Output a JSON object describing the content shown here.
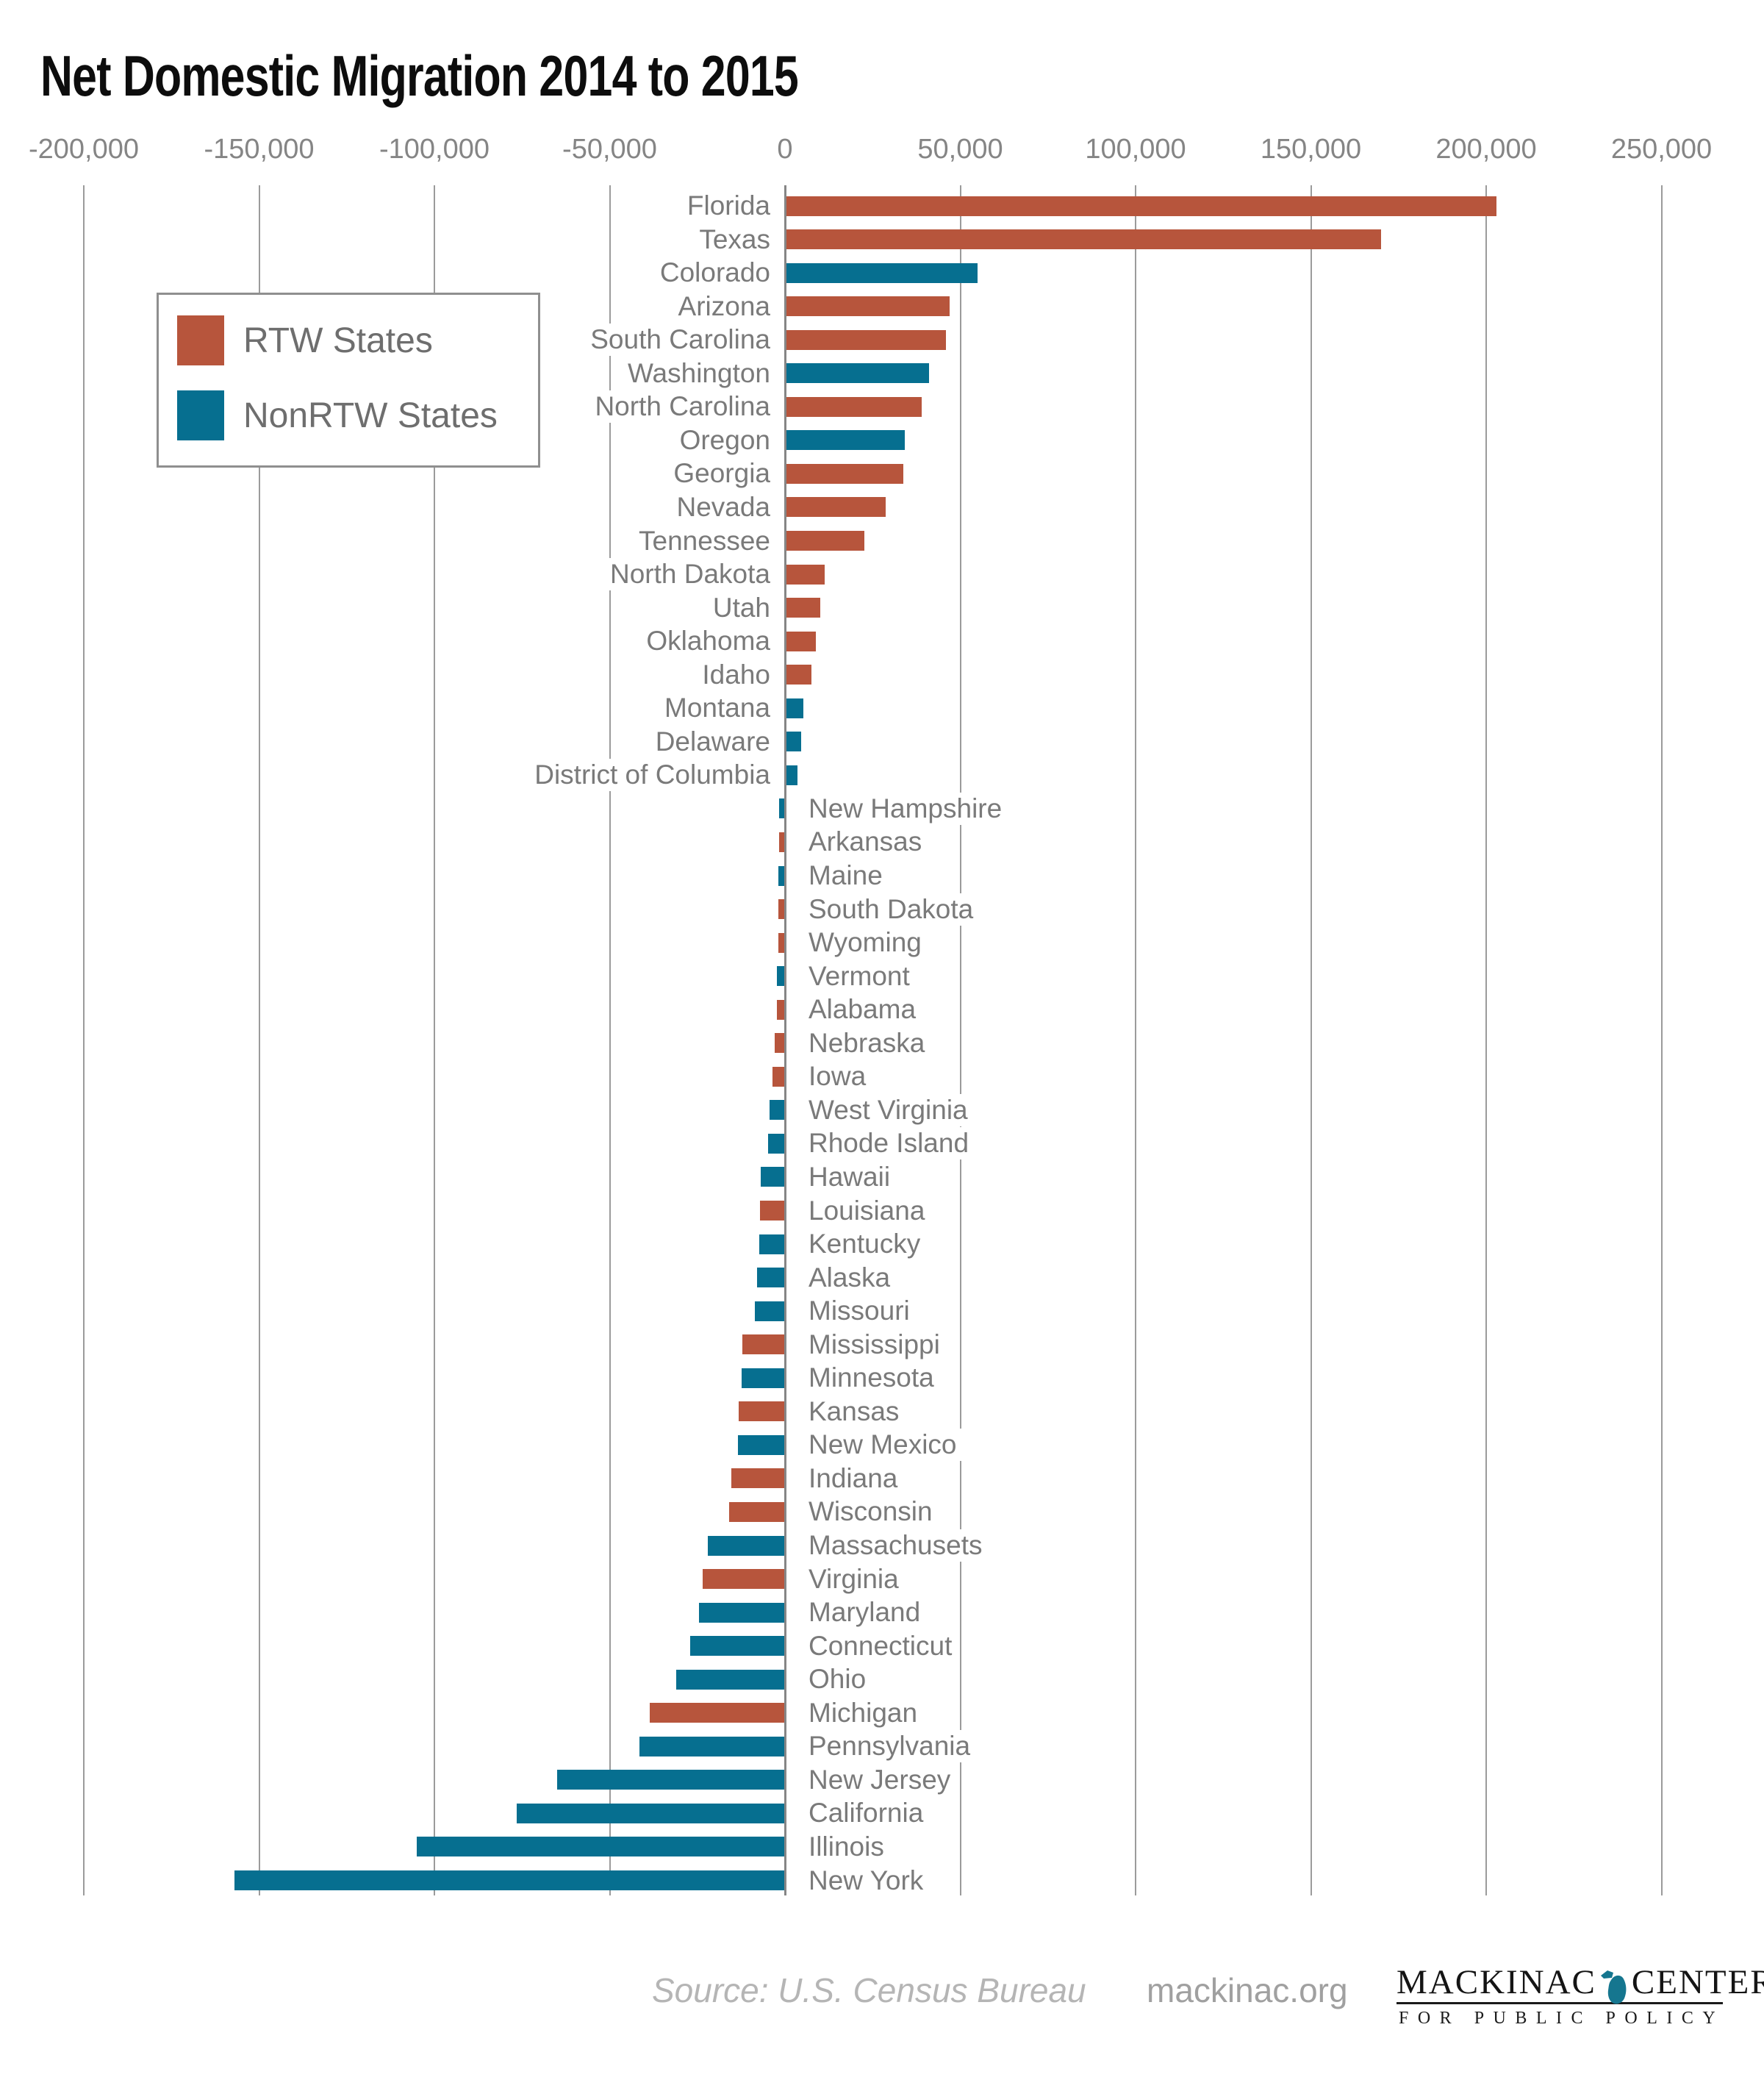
{
  "title": "Net Domestic Migration 2014 to 2015",
  "legend": {
    "items": [
      {
        "label": "RTW States",
        "color": "#b7553c"
      },
      {
        "label": "NonRTW States",
        "color": "#066f90"
      }
    ]
  },
  "axis": {
    "ticks": [
      {
        "label": "-200,000",
        "value": -200000
      },
      {
        "label": "-150,000",
        "value": -150000
      },
      {
        "label": "-100,000",
        "value": -100000
      },
      {
        "label": "-50,000",
        "value": -50000
      },
      {
        "label": "0",
        "value": 0
      },
      {
        "label": "50,000",
        "value": 50000
      },
      {
        "label": "100,000",
        "value": 100000
      },
      {
        "label": "150,000",
        "value": 150000
      },
      {
        "label": "200,000",
        "value": 200000
      },
      {
        "label": "250,000",
        "value": 250000
      }
    ]
  },
  "chart_data": {
    "type": "bar",
    "orientation": "horizontal",
    "title": "Net Domestic Migration 2014 to 2015",
    "xlim": [
      -200000,
      250000
    ],
    "grid": true,
    "legend_position": "upper-left",
    "series": [
      {
        "name": "RTW States",
        "color": "#b7553c"
      },
      {
        "name": "NonRTW States",
        "color": "#066f90"
      }
    ],
    "categories": [
      "Florida",
      "Texas",
      "Colorado",
      "Arizona",
      "South Carolina",
      "Washington",
      "North Carolina",
      "Oregon",
      "Georgia",
      "Nevada",
      "Tennessee",
      "North Dakota",
      "Utah",
      "Oklahoma",
      "Idaho",
      "Montana",
      "Delaware",
      "District of Columbia",
      "New Hampshire",
      "Arkansas",
      "Maine",
      "South Dakota",
      "Wyoming",
      "Vermont",
      "Alabama",
      "Nebraska",
      "Iowa",
      "West Virginia",
      "Rhode Island",
      "Hawaii",
      "Louisiana",
      "Kentucky",
      "Alaska",
      "Missouri",
      "Mississippi",
      "Minnesota",
      "Kansas",
      "New Mexico",
      "Indiana",
      "Wisconsin",
      "Massachusets",
      "Virginia",
      "Maryland",
      "Connecticut",
      "Ohio",
      "Michigan",
      "Pennsylvania",
      "New Jersey",
      "California",
      "Illinois",
      "New York"
    ],
    "values": [
      203000,
      170000,
      55000,
      47000,
      46000,
      41000,
      39000,
      34200,
      33800,
      28800,
      22700,
      11400,
      10000,
      8800,
      7600,
      5300,
      4600,
      3600,
      -1600,
      -1700,
      -1800,
      -1850,
      -1900,
      -2300,
      -2400,
      -3000,
      -3600,
      -4400,
      -4900,
      -7000,
      -7200,
      -7400,
      -8000,
      -8500,
      -12200,
      -12400,
      -13200,
      -13400,
      -15400,
      -16000,
      -22000,
      -23500,
      -24500,
      -27000,
      -31000,
      -38500,
      -41500,
      -65000,
      -76500,
      -105000,
      -157000
    ],
    "groups": [
      "RTW",
      "RTW",
      "NonRTW",
      "RTW",
      "RTW",
      "NonRTW",
      "RTW",
      "NonRTW",
      "RTW",
      "RTW",
      "RTW",
      "RTW",
      "RTW",
      "RTW",
      "RTW",
      "NonRTW",
      "NonRTW",
      "NonRTW",
      "NonRTW",
      "RTW",
      "NonRTW",
      "RTW",
      "RTW",
      "NonRTW",
      "RTW",
      "RTW",
      "RTW",
      "NonRTW",
      "NonRTW",
      "NonRTW",
      "RTW",
      "NonRTW",
      "NonRTW",
      "NonRTW",
      "RTW",
      "NonRTW",
      "RTW",
      "NonRTW",
      "RTW",
      "RTW",
      "NonRTW",
      "RTW",
      "NonRTW",
      "NonRTW",
      "NonRTW",
      "RTW",
      "NonRTW",
      "NonRTW",
      "NonRTW",
      "NonRTW",
      "NonRTW"
    ]
  },
  "footer": {
    "source": "Source: U.S. Census Bureau",
    "site": "mackinac.org",
    "logo": {
      "word_left": "MACKINAC",
      "word_right": "CENTER",
      "tagline": "FOR PUBLIC POLICY",
      "michigan_icon_color": "#15768f"
    }
  }
}
